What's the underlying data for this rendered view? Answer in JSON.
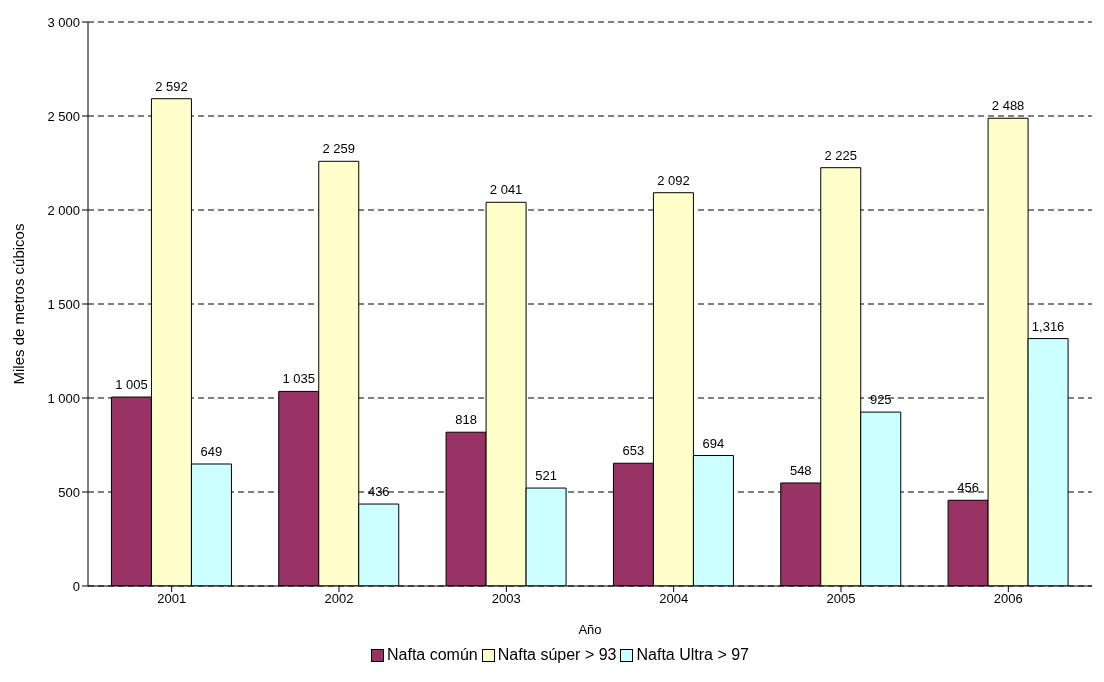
{
  "chart_data": {
    "type": "bar",
    "xlabel": "Año",
    "ylabel": "Miles de metros cúbicos",
    "categories": [
      "2001",
      "2002",
      "2003",
      "2004",
      "2005",
      "2006"
    ],
    "series": [
      {
        "name": "Nafta común",
        "color": "#993366",
        "values": [
          1005,
          1035,
          818,
          653,
          548,
          456
        ],
        "value_labels": [
          "1 005",
          "1 035",
          "818",
          "653",
          "548",
          "456"
        ]
      },
      {
        "name": "Nafta súper > 93",
        "color": "#ffffcc",
        "values": [
          2592,
          2259,
          2041,
          2092,
          2225,
          2488
        ],
        "value_labels": [
          "2 592",
          "2 259",
          "2 041",
          "2 092",
          "2 225",
          "2 488"
        ]
      },
      {
        "name": "Nafta Ultra > 97",
        "color": "#ccffff",
        "values": [
          649,
          436,
          521,
          694,
          925,
          1316
        ],
        "value_labels": [
          "649",
          "436",
          "521",
          "694",
          "925",
          "1,316"
        ]
      }
    ],
    "ylim": [
      0,
      3000
    ],
    "yticks": [
      0,
      500,
      {
        "value": 1000,
        "label": "1 000"
      },
      {
        "value": 1500,
        "label": "1 500"
      },
      {
        "value": 2000,
        "label": "2 000"
      },
      {
        "value": 2500,
        "label": "2 500"
      },
      {
        "value": 3000,
        "label": "3 000"
      }
    ],
    "grid": "y",
    "legend": "bottom"
  }
}
